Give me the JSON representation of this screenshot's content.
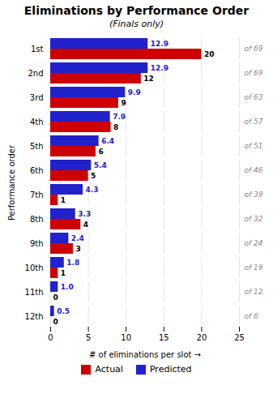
{
  "chart_data": {
    "type": "bar",
    "orientation": "horizontal",
    "title": "Eliminations by Performance Order",
    "subtitle": "(Finals only)",
    "x_label": "# of eliminations per slot",
    "y_label": "Performance order",
    "categories": [
      "1st",
      "2nd",
      "3rd",
      "4th",
      "5th",
      "6th",
      "7th",
      "8th",
      "9th",
      "10th",
      "11th",
      "12th"
    ],
    "series": [
      {
        "name": "Actual",
        "color": "#CC0000",
        "values": [
          20,
          12,
          9,
          8,
          6,
          5,
          1,
          4,
          3,
          1,
          0,
          0
        ]
      },
      {
        "name": "Predicted",
        "color": "#2222CC",
        "values": [
          12.9,
          12.9,
          9.9,
          7.9,
          6.4,
          5.4,
          4.3,
          3.3,
          2.4,
          1.8,
          1.0,
          0.5
        ],
        "value_labels": [
          "12.9",
          "12.9",
          "9.9",
          "7.9",
          "6.4",
          "5.4",
          "4.3",
          "3.3",
          "2.4",
          "1.8",
          "1.0",
          "0.5"
        ]
      }
    ],
    "annotations": [
      "of 69",
      "of 69",
      "of 63",
      "of 57",
      "of 51",
      "of 46",
      "of 39",
      "of 32",
      "of 24",
      "of 19",
      "of 12",
      "of 6"
    ],
    "xlim": [
      0,
      25
    ],
    "xticks": [
      0,
      5,
      10,
      15,
      20,
      25
    ],
    "grid": true,
    "legend": "bottom",
    "data_labels": true
  }
}
